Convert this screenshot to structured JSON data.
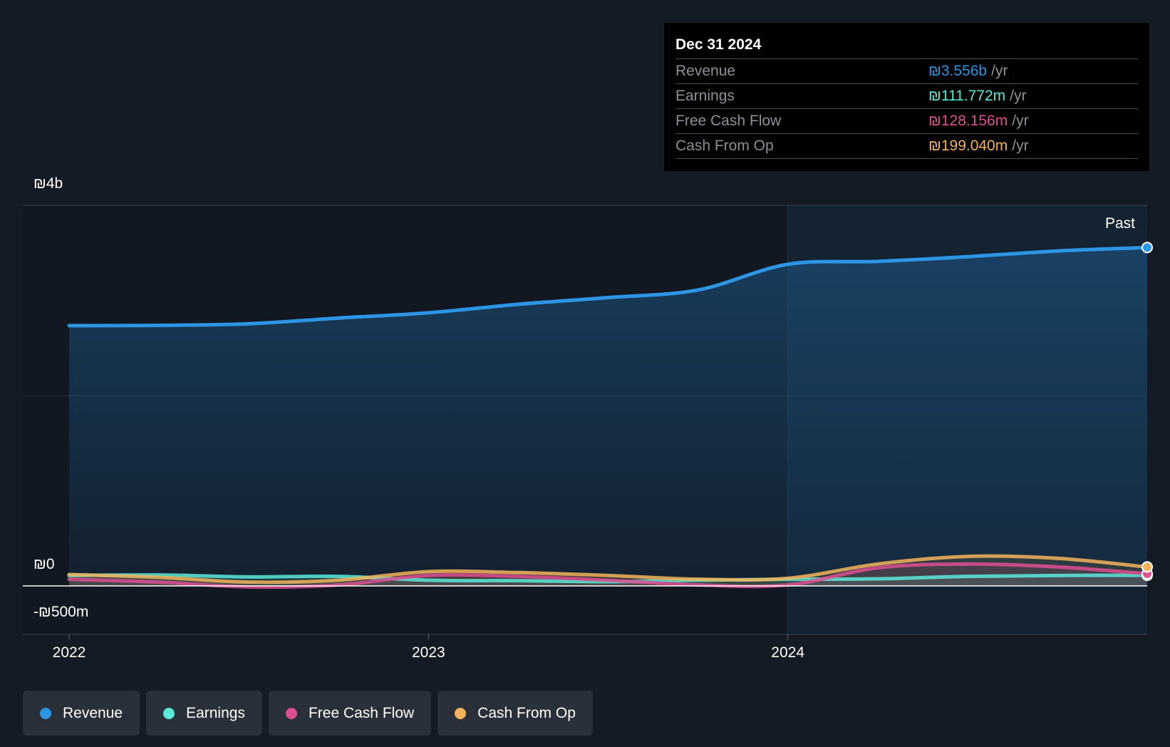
{
  "tooltip": {
    "date": "Dec 31 2024",
    "rows": [
      {
        "label": "Revenue",
        "value": "₪3.556b",
        "unit": "/yr",
        "color": "#2d95e3"
      },
      {
        "label": "Earnings",
        "value": "₪111.772m",
        "unit": "/yr",
        "color": "#5ce8d6"
      },
      {
        "label": "Free Cash Flow",
        "value": "₪128.156m",
        "unit": "/yr",
        "color": "#dd4f92"
      },
      {
        "label": "Cash From Op",
        "value": "₪199.040m",
        "unit": "/yr",
        "color": "#f2b35c"
      }
    ]
  },
  "legend": [
    {
      "label": "Revenue",
      "color": "#2d95e3"
    },
    {
      "label": "Earnings",
      "color": "#5ce8d6"
    },
    {
      "label": "Free Cash Flow",
      "color": "#dd4f92"
    },
    {
      "label": "Cash From Op",
      "color": "#f2b35c"
    }
  ],
  "chart_data": {
    "type": "line",
    "past_label": "Past",
    "y_tick_labels": [
      {
        "value": 4000,
        "label": "₪4b"
      },
      {
        "value": 0,
        "label": "₪0"
      },
      {
        "value": -500,
        "label": "-₪500m"
      }
    ],
    "x_tick_labels": [
      {
        "value": 2022.0,
        "label": "2022"
      },
      {
        "value": 2023.0,
        "label": "2023"
      },
      {
        "value": 2024.0,
        "label": "2024"
      }
    ],
    "xlim": [
      2021.87,
      2025.0
    ],
    "ylim": [
      -500,
      4000
    ],
    "unit": "₪m",
    "grid": true,
    "legend_position": "bottom-left",
    "series": [
      {
        "name": "Revenue",
        "color": "#2d95e3",
        "points": [
          [
            2022.0,
            2735
          ],
          [
            2022.25,
            2738
          ],
          [
            2022.5,
            2755
          ],
          [
            2022.75,
            2815
          ],
          [
            2023.0,
            2870
          ],
          [
            2023.25,
            2960
          ],
          [
            2023.5,
            3030
          ],
          [
            2023.75,
            3110
          ],
          [
            2024.0,
            3380
          ],
          [
            2024.25,
            3410
          ],
          [
            2024.5,
            3460
          ],
          [
            2024.75,
            3520
          ],
          [
            2025.0,
            3556
          ]
        ]
      },
      {
        "name": "Earnings",
        "color": "#5ce8d6",
        "points": [
          [
            2022.0,
            110
          ],
          [
            2022.25,
            115
          ],
          [
            2022.5,
            95
          ],
          [
            2022.75,
            100
          ],
          [
            2023.0,
            60
          ],
          [
            2023.25,
            55
          ],
          [
            2023.5,
            45
          ],
          [
            2023.75,
            60
          ],
          [
            2024.0,
            70
          ],
          [
            2024.25,
            75
          ],
          [
            2024.5,
            100
          ],
          [
            2024.75,
            110
          ],
          [
            2025.0,
            111.772
          ]
        ]
      },
      {
        "name": "Free Cash Flow",
        "color": "#dd4f92",
        "points": [
          [
            2022.0,
            70
          ],
          [
            2022.25,
            40
          ],
          [
            2022.5,
            -10
          ],
          [
            2022.75,
            10
          ],
          [
            2023.0,
            110
          ],
          [
            2023.25,
            100
          ],
          [
            2023.5,
            60
          ],
          [
            2023.75,
            10
          ],
          [
            2024.0,
            10
          ],
          [
            2024.25,
            190
          ],
          [
            2024.5,
            230
          ],
          [
            2024.75,
            200
          ],
          [
            2025.0,
            128.156
          ]
        ]
      },
      {
        "name": "Cash From Op",
        "color": "#f2b35c",
        "points": [
          [
            2022.0,
            120
          ],
          [
            2022.25,
            90
          ],
          [
            2022.5,
            40
          ],
          [
            2022.75,
            60
          ],
          [
            2023.0,
            150
          ],
          [
            2023.25,
            140
          ],
          [
            2023.5,
            110
          ],
          [
            2023.75,
            70
          ],
          [
            2024.0,
            80
          ],
          [
            2024.25,
            230
          ],
          [
            2024.5,
            310
          ],
          [
            2024.75,
            290
          ],
          [
            2025.0,
            199.04
          ]
        ]
      }
    ]
  }
}
